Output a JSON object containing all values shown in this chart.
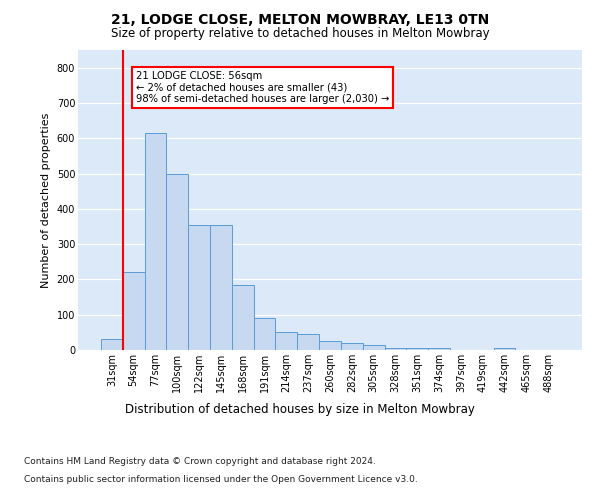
{
  "title1": "21, LODGE CLOSE, MELTON MOWBRAY, LE13 0TN",
  "title2": "Size of property relative to detached houses in Melton Mowbray",
  "xlabel": "Distribution of detached houses by size in Melton Mowbray",
  "ylabel": "Number of detached properties",
  "categories": [
    "31sqm",
    "54sqm",
    "77sqm",
    "100sqm",
    "122sqm",
    "145sqm",
    "168sqm",
    "191sqm",
    "214sqm",
    "237sqm",
    "260sqm",
    "282sqm",
    "305sqm",
    "328sqm",
    "351sqm",
    "374sqm",
    "397sqm",
    "419sqm",
    "442sqm",
    "465sqm",
    "488sqm"
  ],
  "values": [
    30,
    220,
    615,
    500,
    355,
    355,
    185,
    90,
    50,
    45,
    25,
    20,
    15,
    5,
    5,
    5,
    0,
    0,
    5,
    0,
    0
  ],
  "bar_color": "#c6d9f0",
  "bar_edge_color": "#5b9bd5",
  "highlight_bar_index": 1,
  "highlight_color": "#ff0000",
  "annotation_text": "21 LODGE CLOSE: 56sqm\n← 2% of detached houses are smaller (43)\n98% of semi-detached houses are larger (2,030) →",
  "annotation_box_color": "#ffffff",
  "annotation_box_edge": "#ff0000",
  "ylim": [
    0,
    850
  ],
  "yticks": [
    0,
    100,
    200,
    300,
    400,
    500,
    600,
    700,
    800
  ],
  "footnote1": "Contains HM Land Registry data © Crown copyright and database right 2024.",
  "footnote2": "Contains public sector information licensed under the Open Government Licence v3.0.",
  "bg_color": "#dce9f8",
  "fig_bg": "#ffffff",
  "title1_fontsize": 10,
  "title2_fontsize": 8.5,
  "xlabel_fontsize": 8.5,
  "ylabel_fontsize": 8,
  "footnote_fontsize": 6.5,
  "tick_fontsize": 7
}
